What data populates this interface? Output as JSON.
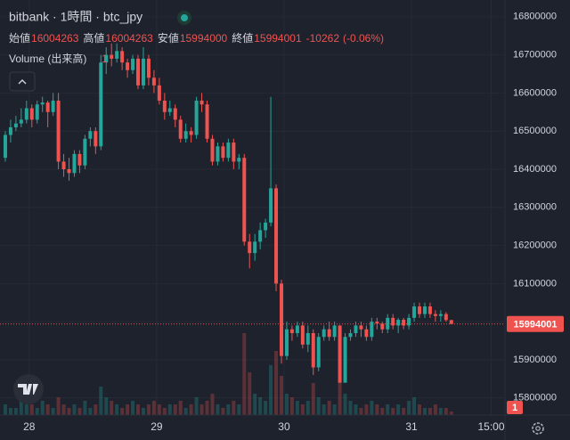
{
  "chart_data": {
    "type": "candlestick",
    "title": "bitbank · 1時間 · btc_jpy",
    "ohlc_labels": [
      "始値",
      "高値",
      "安値",
      "終値"
    ],
    "change": -10262,
    "change_pct": {
      "value": -0.06,
      "label": "(-0.06%)"
    },
    "volume_title": "Volume (出来高)",
    "up_color": "#26a69a",
    "down_color": "#ef5350",
    "grid": true,
    "xlim": [
      -5.5,
      89.6
    ],
    "xticks": [
      {
        "value": 0,
        "label": "28"
      },
      {
        "value": 24,
        "label": "29"
      },
      {
        "value": 48,
        "label": "30"
      },
      {
        "value": 72,
        "label": "31"
      },
      {
        "value": 87,
        "label": "15:00"
      }
    ],
    "ylim": [
      15755000,
      16844000
    ],
    "yticks": [
      15800000,
      15900000,
      16000000,
      16100000,
      16200000,
      16300000,
      16400000,
      16500000,
      16600000,
      16700000,
      16800000
    ],
    "vlim": [
      0,
      25
    ],
    "x": [
      -5,
      -4,
      -3,
      -2,
      -1,
      0,
      1,
      2,
      3,
      4,
      5,
      6,
      7,
      8,
      9,
      10,
      11,
      12,
      13,
      14,
      15,
      16,
      17,
      18,
      19,
      20,
      21,
      22,
      23,
      24,
      25,
      26,
      27,
      28,
      29,
      30,
      31,
      32,
      33,
      34,
      35,
      36,
      37,
      38,
      39,
      40,
      41,
      42,
      43,
      44,
      45,
      46,
      47,
      48,
      49,
      50,
      51,
      52,
      53,
      54,
      55,
      56,
      57,
      58,
      59,
      60,
      61,
      62,
      63,
      64,
      65,
      66,
      67,
      68,
      69,
      70,
      71,
      72,
      73,
      74,
      75,
      76,
      77,
      78,
      79
    ],
    "open": [
      16430000,
      16490000,
      16510000,
      16520000,
      16530000,
      16560000,
      16530000,
      16570000,
      16575000,
      16550000,
      16580000,
      16420000,
      16400000,
      16390000,
      16440000,
      16410000,
      16480000,
      16500000,
      16460000,
      16680000,
      16700000,
      16690000,
      16710000,
      16680000,
      16660000,
      16690000,
      16620000,
      16690000,
      16640000,
      16620000,
      16580000,
      16550000,
      16560000,
      16530000,
      16480000,
      16500000,
      16490000,
      16580000,
      16570000,
      16480000,
      16420000,
      16460000,
      16430000,
      16470000,
      16420000,
      16430000,
      16210000,
      16180000,
      16210000,
      16240000,
      16260000,
      16350000,
      16100000,
      15910000,
      15980000,
      15970000,
      15990000,
      15940000,
      15970000,
      15880000,
      15960000,
      15980000,
      15960000,
      15990000,
      15840000,
      15960000,
      15970000,
      15990000,
      15980000,
      15960000,
      16000000,
      15995000,
      15980000,
      16010000,
      15990000,
      16005000,
      15990000,
      16010000,
      16040000,
      16020000,
      16040000,
      16020000,
      16015000,
      16020000,
      16004263
    ],
    "high": [
      16500000,
      16530000,
      16540000,
      16560000,
      16580000,
      16570000,
      16580000,
      16590000,
      16580000,
      16600000,
      16600000,
      16440000,
      16430000,
      16450000,
      16450000,
      16490000,
      16510000,
      16510000,
      16700000,
      16720000,
      16730000,
      16730000,
      16720000,
      16690000,
      16700000,
      16700000,
      16720000,
      16700000,
      16660000,
      16640000,
      16600000,
      16580000,
      16570000,
      16540000,
      16520000,
      16510000,
      16590000,
      16600000,
      16580000,
      16490000,
      16470000,
      16470000,
      16480000,
      16480000,
      16440000,
      16440000,
      16230000,
      16230000,
      16260000,
      16270000,
      16590000,
      16360000,
      16110000,
      16000000,
      15990000,
      16000000,
      16000000,
      15990000,
      15980000,
      15970000,
      15990000,
      16000000,
      16000000,
      15990000,
      15970000,
      15980000,
      16000000,
      16000000,
      15990000,
      16010000,
      16010000,
      16000000,
      16020000,
      16020000,
      16010000,
      16010000,
      16020000,
      16050000,
      16050000,
      16050000,
      16050000,
      16030000,
      16030000,
      16025000,
      16004263
    ],
    "low": [
      16420000,
      16470000,
      16500000,
      16510000,
      16520000,
      16510000,
      16520000,
      16550000,
      16510000,
      16540000,
      16400000,
      16380000,
      16370000,
      16380000,
      16390000,
      16400000,
      16460000,
      16440000,
      16450000,
      16650000,
      16670000,
      16680000,
      16660000,
      16640000,
      16650000,
      16610000,
      16610000,
      16620000,
      16600000,
      16570000,
      16530000,
      16540000,
      16510000,
      16470000,
      16470000,
      16470000,
      16480000,
      16550000,
      16470000,
      16410000,
      16410000,
      16420000,
      16420000,
      16400000,
      16400000,
      16200000,
      16140000,
      16160000,
      16190000,
      16220000,
      16250000,
      16080000,
      15890000,
      15900000,
      15950000,
      15960000,
      15930000,
      15920000,
      15860000,
      15870000,
      15950000,
      15950000,
      15950000,
      15840000,
      15840000,
      15950000,
      15960000,
      15960000,
      15950000,
      15950000,
      15980000,
      15970000,
      15970000,
      15980000,
      15970000,
      15980000,
      15980000,
      16000000,
      16010000,
      16010000,
      16010000,
      16000000,
      16000000,
      16000000,
      15994000
    ],
    "close": [
      16490000,
      16510000,
      16520000,
      16530000,
      16560000,
      16530000,
      16570000,
      16575000,
      16550000,
      16580000,
      16420000,
      16400000,
      16390000,
      16440000,
      16410000,
      16480000,
      16500000,
      16460000,
      16680000,
      16700000,
      16690000,
      16710000,
      16680000,
      16660000,
      16690000,
      16620000,
      16690000,
      16640000,
      16620000,
      16580000,
      16550000,
      16560000,
      16530000,
      16480000,
      16500000,
      16490000,
      16580000,
      16570000,
      16480000,
      16420000,
      16460000,
      16430000,
      16470000,
      16420000,
      16430000,
      16210000,
      16180000,
      16210000,
      16240000,
      16260000,
      16350000,
      16100000,
      15910000,
      15980000,
      15970000,
      15990000,
      15940000,
      15970000,
      15880000,
      15960000,
      15980000,
      15960000,
      15990000,
      15840000,
      15960000,
      15970000,
      15990000,
      15980000,
      15960000,
      16000000,
      15995000,
      15980000,
      16010000,
      15990000,
      16005000,
      15990000,
      16010000,
      16040000,
      16020000,
      16040000,
      16020000,
      16015000,
      16020000,
      16004263,
      15994001
    ],
    "volume": [
      3,
      2,
      2,
      4,
      3,
      3,
      2,
      4,
      3,
      2,
      5,
      3,
      2,
      3,
      2,
      4,
      2,
      3,
      8,
      5,
      4,
      3,
      2,
      3,
      4,
      3,
      2,
      3,
      4,
      3,
      2,
      3,
      3,
      4,
      2,
      3,
      5,
      3,
      4,
      6,
      3,
      2,
      3,
      4,
      3,
      23,
      12,
      6,
      5,
      4,
      14,
      18,
      11,
      6,
      5,
      4,
      3,
      4,
      9,
      5,
      3,
      4,
      3,
      10,
      6,
      4,
      3,
      2,
      3,
      4,
      3,
      2,
      3,
      2,
      3,
      2,
      4,
      5,
      3,
      2,
      2,
      3,
      2,
      2,
      1
    ]
  }
}
